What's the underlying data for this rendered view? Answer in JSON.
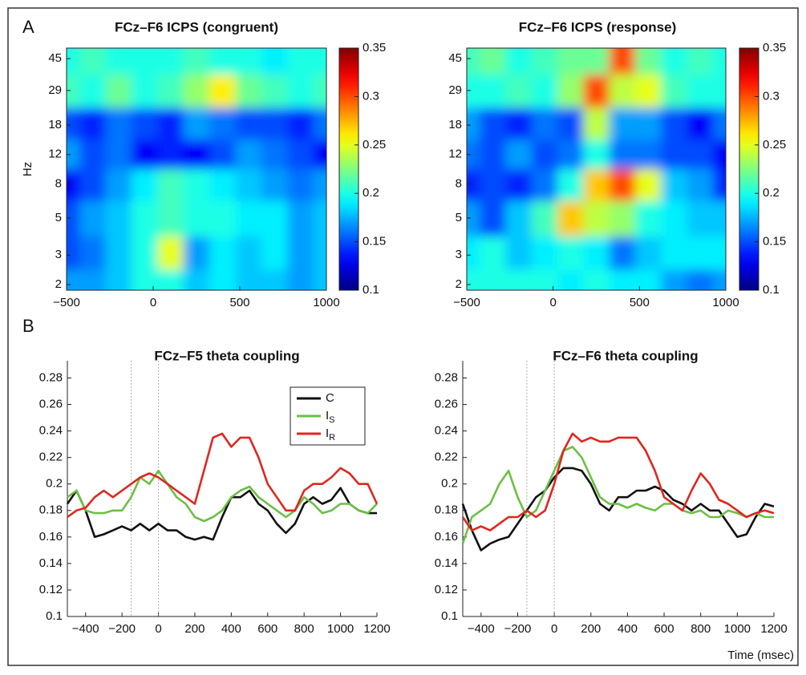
{
  "chart_data": [
    {
      "type": "heatmap",
      "panel": "A",
      "title": "FCz–F6 ICPS (congruent)",
      "ylabel": "Hz",
      "x": [
        -500,
        -350,
        -200,
        -50,
        100,
        250,
        400,
        550,
        700,
        850,
        1000
      ],
      "y": [
        45,
        29,
        18,
        12,
        8,
        5,
        3,
        2
      ],
      "z": [
        [
          0.2,
          0.21,
          0.2,
          0.2,
          0.2,
          0.21,
          0.2,
          0.2,
          0.19,
          0.2,
          0.2
        ],
        [
          0.21,
          0.2,
          0.22,
          0.2,
          0.21,
          0.23,
          0.26,
          0.22,
          0.21,
          0.2,
          0.21
        ],
        [
          0.15,
          0.14,
          0.16,
          0.15,
          0.14,
          0.17,
          0.16,
          0.15,
          0.15,
          0.14,
          0.16
        ],
        [
          0.17,
          0.15,
          0.16,
          0.13,
          0.14,
          0.13,
          0.15,
          0.17,
          0.16,
          0.15,
          0.13
        ],
        [
          0.13,
          0.15,
          0.17,
          0.19,
          0.21,
          0.2,
          0.19,
          0.18,
          0.17,
          0.16,
          0.17
        ],
        [
          0.15,
          0.17,
          0.18,
          0.2,
          0.21,
          0.2,
          0.2,
          0.19,
          0.19,
          0.17,
          0.18
        ],
        [
          0.15,
          0.16,
          0.18,
          0.2,
          0.25,
          0.17,
          0.19,
          0.18,
          0.19,
          0.17,
          0.18
        ],
        [
          0.17,
          0.17,
          0.18,
          0.2,
          0.2,
          0.18,
          0.19,
          0.18,
          0.18,
          0.17,
          0.18
        ]
      ],
      "xlim": [
        -500,
        1000
      ],
      "xticks": [
        {
          "value": -500,
          "label": "−500"
        },
        0,
        500,
        1000
      ],
      "ylim": [
        1.85,
        52
      ],
      "yscale": "log",
      "yticks": [
        2,
        3,
        5,
        8,
        12,
        18,
        29,
        45
      ],
      "colormap": "jet",
      "clim": [
        0.1,
        0.35
      ],
      "cticks": [
        0.1,
        0.15,
        0.2,
        0.25,
        0.3,
        0.35
      ]
    },
    {
      "type": "heatmap",
      "title": "FCz–F6 ICPS (response)",
      "x": [
        -500,
        -350,
        -200,
        -50,
        100,
        250,
        400,
        550,
        700,
        850,
        1000
      ],
      "y": [
        45,
        29,
        18,
        12,
        8,
        5,
        3,
        2
      ],
      "z": [
        [
          0.21,
          0.22,
          0.2,
          0.21,
          0.22,
          0.22,
          0.3,
          0.22,
          0.2,
          0.21,
          0.2
        ],
        [
          0.2,
          0.2,
          0.21,
          0.2,
          0.23,
          0.3,
          0.24,
          0.25,
          0.21,
          0.2,
          0.2
        ],
        [
          0.17,
          0.15,
          0.14,
          0.16,
          0.15,
          0.24,
          0.17,
          0.17,
          0.15,
          0.13,
          0.16
        ],
        [
          0.16,
          0.15,
          0.17,
          0.15,
          0.16,
          0.2,
          0.16,
          0.16,
          0.15,
          0.15,
          0.13
        ],
        [
          0.14,
          0.15,
          0.14,
          0.16,
          0.2,
          0.27,
          0.3,
          0.25,
          0.18,
          0.17,
          0.14
        ],
        [
          0.17,
          0.15,
          0.18,
          0.21,
          0.27,
          0.24,
          0.23,
          0.2,
          0.19,
          0.18,
          0.18
        ],
        [
          0.19,
          0.2,
          0.18,
          0.19,
          0.2,
          0.19,
          0.16,
          0.18,
          0.19,
          0.19,
          0.19
        ],
        [
          0.2,
          0.2,
          0.2,
          0.2,
          0.19,
          0.2,
          0.19,
          0.19,
          0.17,
          0.16,
          0.17
        ]
      ],
      "xlim": [
        -500,
        1000
      ],
      "xticks": [
        {
          "value": -500,
          "label": "−500"
        },
        0,
        500,
        1000
      ],
      "ylim": [
        1.85,
        52
      ],
      "yscale": "log",
      "yticks": [
        2,
        3,
        5,
        8,
        12,
        18,
        29,
        45
      ],
      "colormap": "jet",
      "clim": [
        0.1,
        0.35
      ],
      "cticks": [
        0.1,
        0.15,
        0.2,
        0.25,
        0.3,
        0.35
      ]
    },
    {
      "type": "line",
      "panel": "B",
      "title": "FCz–F5 theta coupling",
      "x": [
        -500,
        -450,
        -400,
        -350,
        -300,
        -250,
        -200,
        -150,
        -100,
        -50,
        0,
        50,
        100,
        150,
        200,
        250,
        300,
        350,
        400,
        450,
        500,
        550,
        600,
        650,
        700,
        750,
        800,
        850,
        900,
        950,
        1000,
        1050,
        1100,
        1150,
        1200
      ],
      "series": [
        {
          "name": "C",
          "color": "#111111",
          "values": [
            0.185,
            0.195,
            0.18,
            0.16,
            0.162,
            0.165,
            0.168,
            0.165,
            0.17,
            0.165,
            0.17,
            0.165,
            0.165,
            0.16,
            0.158,
            0.16,
            0.158,
            0.175,
            0.19,
            0.19,
            0.195,
            0.185,
            0.18,
            0.17,
            0.163,
            0.17,
            0.185,
            0.19,
            0.185,
            0.188,
            0.197,
            0.185,
            0.18,
            0.178,
            0.178
          ]
        },
        {
          "name": "I",
          "subscript": "S",
          "color": "#6cbf45",
          "values": [
            0.19,
            0.195,
            0.18,
            0.178,
            0.178,
            0.18,
            0.18,
            0.19,
            0.205,
            0.2,
            0.21,
            0.2,
            0.19,
            0.185,
            0.175,
            0.172,
            0.175,
            0.18,
            0.19,
            0.195,
            0.198,
            0.19,
            0.185,
            0.18,
            0.175,
            0.18,
            0.19,
            0.185,
            0.178,
            0.18,
            0.185,
            0.185,
            0.18,
            0.178,
            0.185
          ]
        },
        {
          "name": "I",
          "subscript": "R",
          "color": "#e0261f",
          "values": [
            0.175,
            0.18,
            0.182,
            0.19,
            0.195,
            0.19,
            0.195,
            0.2,
            0.205,
            0.208,
            0.205,
            0.2,
            0.195,
            0.19,
            0.185,
            0.21,
            0.235,
            0.238,
            0.228,
            0.235,
            0.235,
            0.22,
            0.2,
            0.19,
            0.18,
            0.18,
            0.195,
            0.2,
            0.2,
            0.205,
            0.212,
            0.208,
            0.2,
            0.2,
            0.185
          ]
        }
      ],
      "xlim": [
        -500,
        1200
      ],
      "xticks": [
        {
          "value": -400,
          "label": "−400"
        },
        {
          "value": -200,
          "label": "−200"
        },
        0,
        200,
        400,
        600,
        800,
        1000,
        1200
      ],
      "ylim": [
        0.1,
        0.293
      ],
      "yticks": [
        0.1,
        0.12,
        0.14,
        0.16,
        0.18,
        0.2,
        0.22,
        0.24,
        0.26,
        0.28
      ],
      "vlines": [
        -150,
        0
      ],
      "legend": "upper right"
    },
    {
      "type": "line",
      "title": "FCz–F6 theta coupling",
      "xlabel": "Time (msec)",
      "x": [
        -500,
        -450,
        -400,
        -350,
        -300,
        -250,
        -200,
        -150,
        -100,
        -50,
        0,
        50,
        100,
        150,
        200,
        250,
        300,
        350,
        400,
        450,
        500,
        550,
        600,
        650,
        700,
        750,
        800,
        850,
        900,
        950,
        1000,
        1050,
        1100,
        1150,
        1200
      ],
      "series": [
        {
          "color": "#111111",
          "values": [
            0.185,
            0.165,
            0.15,
            0.155,
            0.158,
            0.16,
            0.17,
            0.18,
            0.19,
            0.195,
            0.205,
            0.212,
            0.212,
            0.21,
            0.2,
            0.185,
            0.18,
            0.19,
            0.19,
            0.195,
            0.195,
            0.198,
            0.195,
            0.188,
            0.185,
            0.18,
            0.185,
            0.18,
            0.18,
            0.17,
            0.16,
            0.162,
            0.175,
            0.185,
            0.183
          ]
        },
        {
          "color": "#6cbf45",
          "values": [
            0.155,
            0.175,
            0.18,
            0.185,
            0.2,
            0.21,
            0.19,
            0.175,
            0.18,
            0.195,
            0.21,
            0.225,
            0.228,
            0.22,
            0.205,
            0.19,
            0.185,
            0.185,
            0.182,
            0.185,
            0.182,
            0.18,
            0.185,
            0.185,
            0.18,
            0.178,
            0.18,
            0.175,
            0.175,
            0.18,
            0.178,
            0.175,
            0.178,
            0.175,
            0.175
          ]
        },
        {
          "color": "#e0261f",
          "values": [
            0.175,
            0.165,
            0.168,
            0.165,
            0.17,
            0.175,
            0.175,
            0.18,
            0.175,
            0.18,
            0.2,
            0.225,
            0.238,
            0.232,
            0.235,
            0.232,
            0.232,
            0.235,
            0.235,
            0.235,
            0.225,
            0.21,
            0.19,
            0.185,
            0.18,
            0.195,
            0.208,
            0.2,
            0.188,
            0.185,
            0.18,
            0.175,
            0.178,
            0.18,
            0.178
          ]
        }
      ],
      "xlim": [
        -500,
        1200
      ],
      "xticks": [
        {
          "value": -400,
          "label": "−400"
        },
        {
          "value": -200,
          "label": "−200"
        },
        0,
        200,
        400,
        600,
        800,
        1000,
        1200
      ],
      "ylim": [
        0.1,
        0.293
      ],
      "yticks": [
        0.1,
        0.12,
        0.14,
        0.16,
        0.18,
        0.2,
        0.22,
        0.24,
        0.26,
        0.28
      ],
      "vlines": [
        -150,
        0
      ]
    }
  ]
}
